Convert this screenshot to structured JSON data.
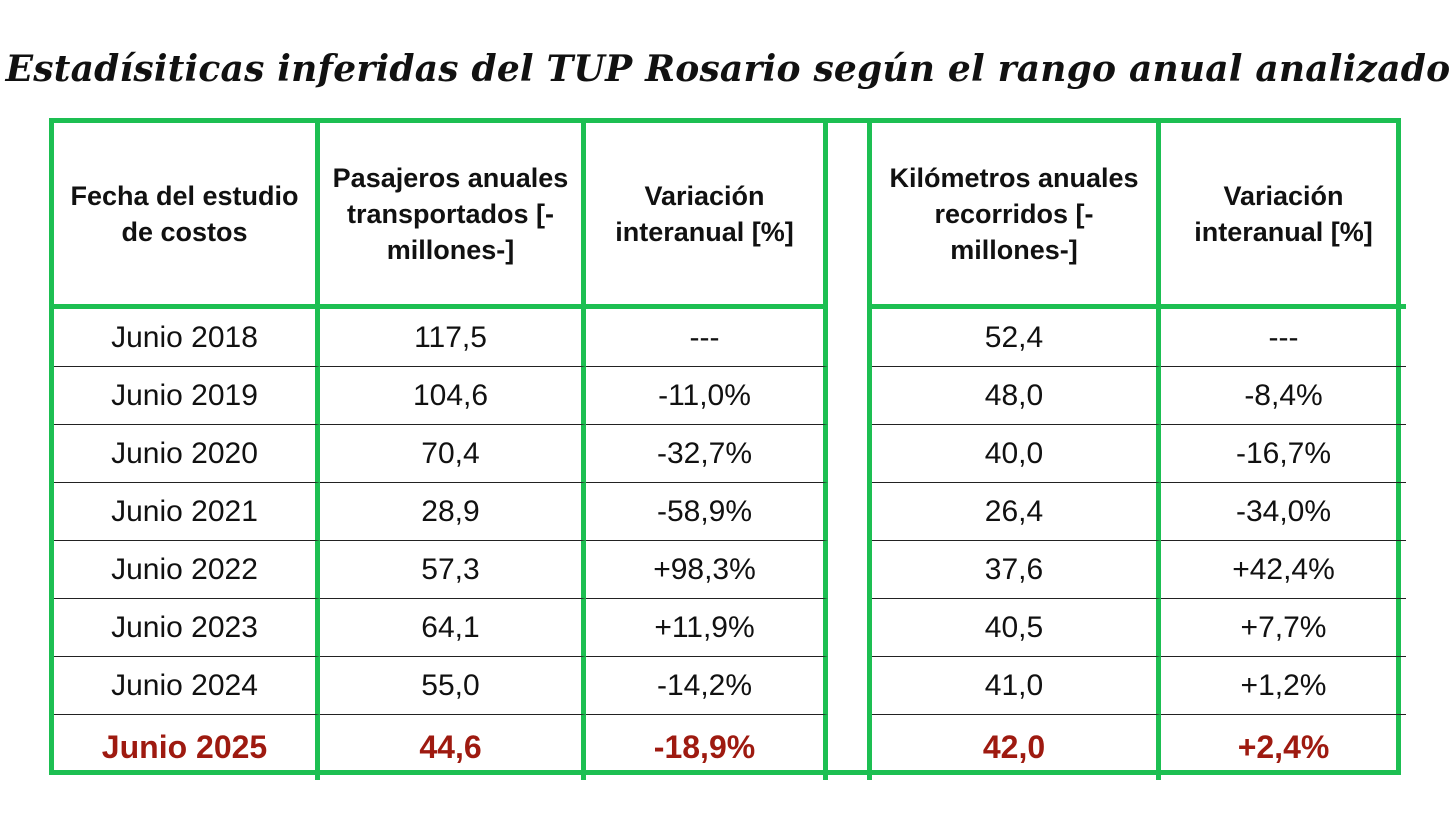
{
  "title": "Estadísiticas inferidas del TUP Rosario según el rango anual analizado",
  "chart_data": {
    "type": "table",
    "columns": [
      "Fecha del estudio de costos",
      "Pasajeros anuales transportados [-millones-]",
      "Variación interanual [%]",
      "Kilómetros anuales recorridos [-millones-]",
      "Variación interanual [%]"
    ],
    "rows": [
      [
        "Junio 2018",
        "117,5",
        "---",
        "52,4",
        "---"
      ],
      [
        "Junio 2019",
        "104,6",
        "-11,0%",
        "48,0",
        "-8,4%"
      ],
      [
        "Junio 2020",
        "70,4",
        "-32,7%",
        "40,0",
        "-16,7%"
      ],
      [
        "Junio 2021",
        "28,9",
        "-58,9%",
        "26,4",
        "-34,0%"
      ],
      [
        "Junio 2022",
        "57,3",
        "+98,3%",
        "37,6",
        "+42,4%"
      ],
      [
        "Junio 2023",
        "64,1",
        "+11,9%",
        "40,5",
        "+7,7%"
      ],
      [
        "Junio 2024",
        "55,0",
        "-14,2%",
        "41,0",
        "+1,2%"
      ],
      [
        "Junio 2025",
        "44,6",
        "-18,9%",
        "42,0",
        "+2,4%"
      ]
    ],
    "highlight_row": 7,
    "colors": {
      "border": "#1dbf52",
      "highlight_text": "#9e1a10"
    }
  }
}
